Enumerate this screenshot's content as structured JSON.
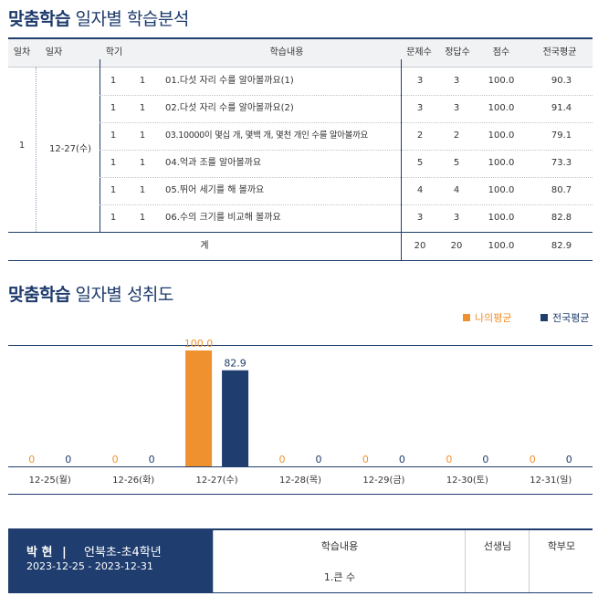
{
  "section1": {
    "title_bold": "맞춤학습",
    "title_rest": "일자별 학습분석"
  },
  "table": {
    "headers": {
      "day_no": "일차",
      "date": "일자",
      "term": "학기",
      "content": "학습내용",
      "questions": "문제수",
      "correct": "정답수",
      "score": "점수",
      "national_avg": "전국평균"
    },
    "day_no": "1",
    "date": "12-27(수)",
    "rows": [
      {
        "term": "1",
        "unit": "1",
        "content": "01.다섯 자리 수를 알아볼까요(1)",
        "questions": "3",
        "correct": "3",
        "score": "100.0",
        "national_avg": "90.3"
      },
      {
        "term": "1",
        "unit": "1",
        "content": "02.다섯 자리 수를 알아볼까요(2)",
        "questions": "3",
        "correct": "3",
        "score": "100.0",
        "national_avg": "91.4"
      },
      {
        "term": "1",
        "unit": "1",
        "content": "03.10000이 몇십 개, 몇백 개, 몇천 개인 수를 알아볼까요",
        "questions": "2",
        "correct": "2",
        "score": "100.0",
        "national_avg": "79.1"
      },
      {
        "term": "1",
        "unit": "1",
        "content": "04.억과 조를 알아볼까요",
        "questions": "5",
        "correct": "5",
        "score": "100.0",
        "national_avg": "73.3"
      },
      {
        "term": "1",
        "unit": "1",
        "content": "05.뛰어 세기를 해 볼까요",
        "questions": "4",
        "correct": "4",
        "score": "100.0",
        "national_avg": "80.7"
      },
      {
        "term": "1",
        "unit": "1",
        "content": "06.수의 크기를 비교해 볼까요",
        "questions": "3",
        "correct": "3",
        "score": "100.0",
        "national_avg": "82.8"
      }
    ],
    "total": {
      "label": "계",
      "questions": "20",
      "correct": "20",
      "score": "100.0",
      "national_avg": "82.9"
    }
  },
  "section2": {
    "title_bold": "맞춤학습",
    "title_rest": "일자별 성취도"
  },
  "legend": {
    "mine": "나의평균",
    "national": "전국평균"
  },
  "colors": {
    "mine": "#f0912f",
    "national": "#1f3d6e",
    "navy": "#1f3d6e"
  },
  "chart_data": {
    "type": "bar",
    "categories": [
      "12-25(월)",
      "12-26(화)",
      "12-27(수)",
      "12-28(목)",
      "12-29(금)",
      "12-30(토)",
      "12-31(일)"
    ],
    "series": [
      {
        "name": "나의평균",
        "values": [
          0,
          0,
          100.0,
          0,
          0,
          0,
          0
        ],
        "labels": [
          "0",
          "0",
          "100.0",
          "0",
          "0",
          "0",
          "0"
        ]
      },
      {
        "name": "전국평균",
        "values": [
          0,
          0,
          82.9,
          0,
          0,
          0,
          0
        ],
        "labels": [
          "0",
          "0",
          "82.9",
          "0",
          "0",
          "0",
          "0"
        ]
      }
    ],
    "ylim": [
      0,
      100
    ]
  },
  "footer": {
    "name": "박 현",
    "separator": "|",
    "school": "언북초-초4학년",
    "date_range": "2023-12-25 - 2023-12-31",
    "col_content": "학습내용",
    "col_teacher": "선생님",
    "col_parent": "학부모",
    "content_value": "1.큰 수"
  }
}
